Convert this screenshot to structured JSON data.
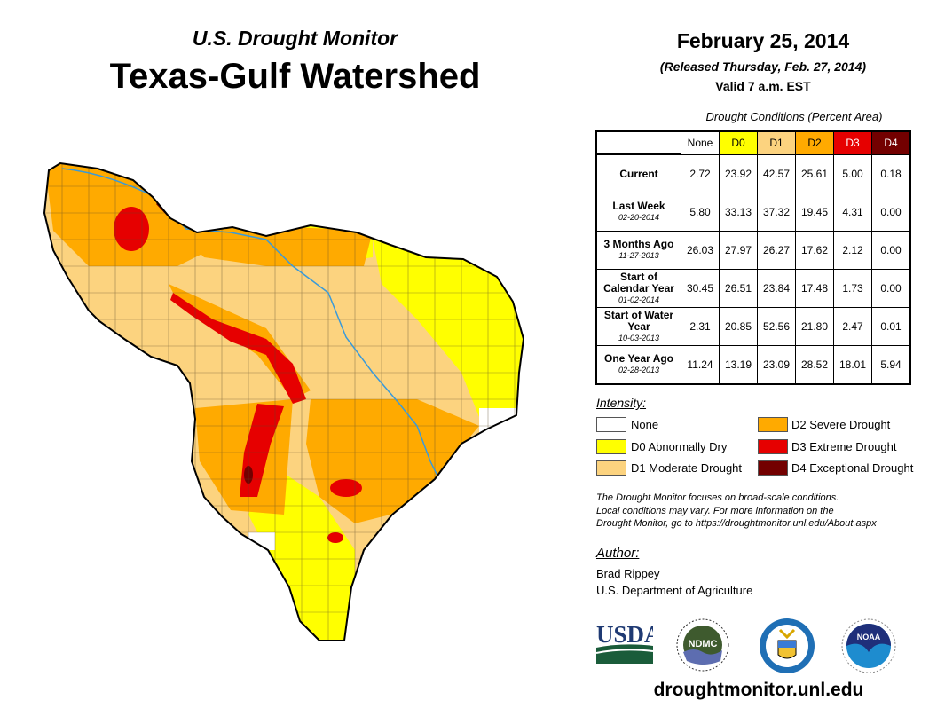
{
  "header": {
    "title_small": "U.S. Drought Monitor",
    "title_large": "Texas-Gulf Watershed",
    "date": "February 25, 2014",
    "released": "(Released Thursday, Feb. 27, 2014)",
    "valid": "Valid 7 a.m. EST"
  },
  "table": {
    "caption": "Drought Conditions (Percent Area)",
    "columns": [
      "None",
      "D0",
      "D1",
      "D2",
      "D3",
      "D4"
    ],
    "rows": [
      {
        "label": "Current",
        "date": "",
        "values": [
          "2.72",
          "23.92",
          "42.57",
          "25.61",
          "5.00",
          "0.18"
        ]
      },
      {
        "label": "Last Week",
        "date": "02-20-2014",
        "values": [
          "5.80",
          "33.13",
          "37.32",
          "19.45",
          "4.31",
          "0.00"
        ]
      },
      {
        "label": "3 Months Ago",
        "date": "11-27-2013",
        "values": [
          "26.03",
          "27.97",
          "26.27",
          "17.62",
          "2.12",
          "0.00"
        ]
      },
      {
        "label": "Start of Calendar Year",
        "date": "01-02-2014",
        "values": [
          "30.45",
          "26.51",
          "23.84",
          "17.48",
          "1.73",
          "0.00"
        ]
      },
      {
        "label": "Start of Water Year",
        "date": "10-03-2013",
        "values": [
          "2.31",
          "20.85",
          "52.56",
          "21.80",
          "2.47",
          "0.01"
        ]
      },
      {
        "label": "One Year Ago",
        "date": "02-28-2013",
        "values": [
          "11.24",
          "13.19",
          "23.09",
          "28.52",
          "18.01",
          "5.94"
        ]
      }
    ]
  },
  "legend": {
    "title": "Intensity:",
    "items": [
      {
        "label": "None",
        "color": "#FFFFFF"
      },
      {
        "label": "D0 Abnormally Dry",
        "color": "#FFFF00"
      },
      {
        "label": "D1 Moderate Drought",
        "color": "#FCD37F"
      },
      {
        "label": "D2 Severe Drought",
        "color": "#FFAA00"
      },
      {
        "label": "D3 Extreme Drought",
        "color": "#E60000"
      },
      {
        "label": "D4 Exceptional Drought",
        "color": "#730000"
      }
    ]
  },
  "note": [
    "The Drought Monitor focuses on broad-scale conditions.",
    "Local conditions may vary. For more information on the",
    "Drought Monitor, go to https://droughtmonitor.unl.edu/About.aspx"
  ],
  "author": {
    "title": "Author:",
    "name": "Brad Rippey",
    "org": "U.S. Department of Agriculture"
  },
  "logos": {
    "usda": "USDA",
    "ndmc": "NDMC",
    "noaa": "NOAA"
  },
  "footer_url": "droughtmonitor.unl.edu"
}
